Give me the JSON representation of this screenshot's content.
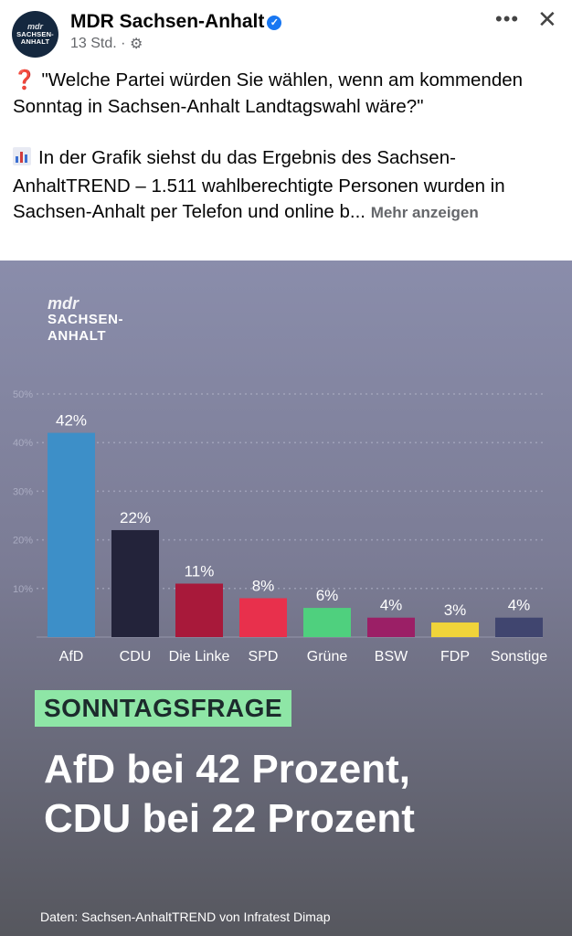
{
  "header": {
    "avatar_line1": "mdr",
    "avatar_line2": "SACHSEN-",
    "avatar_line3": "ANHALT",
    "page_name": "MDR Sachsen-Anhalt",
    "verified_icon": "verified-badge-icon",
    "time": "13 Std.",
    "separator": "·",
    "privacy_icon": "gear-icon",
    "more_icon": "more-options-icon",
    "close_icon": "close-icon"
  },
  "post": {
    "question": "\"Welche Partei würden Sie wählen, wenn am kommenden Sonntag in Sachsen-Anhalt Landtagswahl wäre?\"",
    "body": "In der Grafik siehst du das Ergebnis des Sachsen-AnhaltTREND – 1.511 wahlberechtigte Personen wurden in Sachsen-Anhalt per Telefon und online b...",
    "more_label": "Mehr anzeigen",
    "question_icon": "question-mark-icon",
    "chart_icon": "bar-chart-icon"
  },
  "graphic": {
    "brand_line1": "mdr",
    "brand_line2": "SACHSEN-",
    "brand_line3": "ANHALT",
    "tag": "SONNTAGSFRAGE",
    "headline_line1": "AfD bei 42 Prozent,",
    "headline_line2": "CDU bei 22 Prozent",
    "source": "Daten: Sachsen-AnhaltTREND von Infratest Dimap"
  },
  "chart_data": {
    "type": "bar",
    "categories": [
      "AfD",
      "CDU",
      "Die Linke",
      "SPD",
      "Grüne",
      "BSW",
      "FDP",
      "Sonstige"
    ],
    "values": [
      42,
      22,
      11,
      8,
      6,
      4,
      3,
      4
    ],
    "value_labels": [
      "42%",
      "22%",
      "11%",
      "8%",
      "6%",
      "4%",
      "3%",
      "4%"
    ],
    "colors": [
      "#3d8fc8",
      "#23233a",
      "#a8193a",
      "#e8304c",
      "#4fd07e",
      "#9b1f66",
      "#f0d43a",
      "#40456f"
    ],
    "yticks": [
      "10%",
      "20%",
      "30%",
      "40%",
      "50%"
    ],
    "ylim": [
      0,
      50
    ],
    "grid": true,
    "grid_color": "#b5b7cc",
    "label_color": "#ffffff"
  }
}
